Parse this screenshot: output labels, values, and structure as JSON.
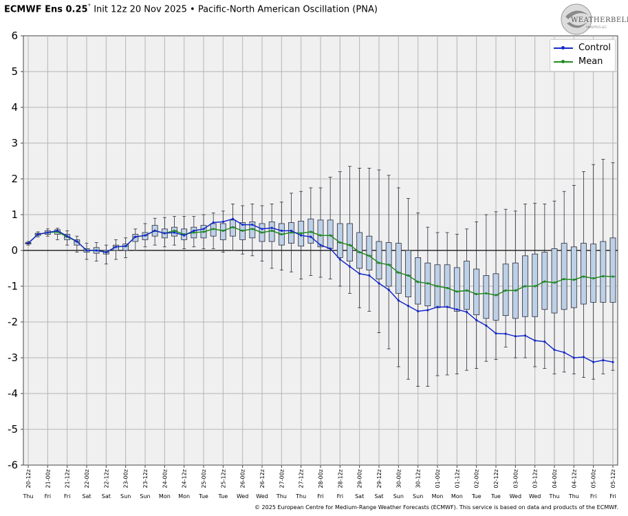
{
  "header": {
    "model": "ECMWF Ens 0.25",
    "model_deg": "°",
    "rest": " Init 12z 20 Nov 2025 • Pacific-North American Oscillation (PNA)"
  },
  "logo": {
    "text": "WEATHERBELL",
    "sub": "ANALYTICS LLC"
  },
  "footer": "© 2025 European Centre for Medium-Range Weather Forecasts (ECMWF). This service is based on data and products of the ECMWF.",
  "colors": {
    "control": "#1428c8",
    "mean": "#1e8c1e",
    "box_fill": "#bdd0e6",
    "box_edge": "#2a2a3a",
    "plot_bg": "#f0f0f0",
    "grid": "#b4b4b4"
  },
  "chart_data": {
    "type": "box",
    "title": "Pacific-North American Oscillation (PNA)",
    "ylim": [
      -6,
      6
    ],
    "yticks": [
      -6,
      -5,
      -4,
      -3,
      -2,
      -1,
      0,
      1,
      2,
      3,
      4,
      5,
      6
    ],
    "grid": true,
    "legend_position": "top-right",
    "legend": [
      "Control",
      "Mean"
    ],
    "x_tick_labels": [
      "20-12z",
      "21-00z",
      "21-12z",
      "22-00z",
      "22-12z",
      "23-00z",
      "23-12z",
      "24-00z",
      "24-12z",
      "25-00z",
      "25-12z",
      "26-00z",
      "26-12z",
      "27-00z",
      "27-12z",
      "28-00z",
      "28-12z",
      "29-00z",
      "29-12z",
      "30-00z",
      "30-12z",
      "01-00z",
      "01-12z",
      "02-00z",
      "02-12z",
      "03-00z",
      "03-12z",
      "04-00z",
      "04-12z",
      "05-00z",
      "05-12z"
    ],
    "x_day_labels": [
      "Thu",
      "Fri",
      "Fri",
      "Sat",
      "Sat",
      "Sun",
      "Sun",
      "Mon",
      "Mon",
      "Tue",
      "Tue",
      "Wed",
      "Wed",
      "Thu",
      "Thu",
      "Fri",
      "Fri",
      "Sat",
      "Sat",
      "Sun",
      "Sun",
      "Mon",
      "Mon",
      "Tue",
      "Tue",
      "Wed",
      "Wed",
      "Thu",
      "Thu",
      "Fri",
      "Fri"
    ],
    "series": [
      {
        "name": "Control",
        "values": [
          0.2,
          0.45,
          0.5,
          0.55,
          0.4,
          0.25,
          0.0,
          0.0,
          -0.05,
          0.1,
          0.12,
          0.38,
          0.42,
          0.55,
          0.48,
          0.5,
          0.42,
          0.55,
          0.6,
          0.78,
          0.8,
          0.88,
          0.72,
          0.72,
          0.6,
          0.63,
          0.55,
          0.55,
          0.42,
          0.38,
          0.15,
          0.05,
          -0.25,
          -0.45,
          -0.65,
          -0.7,
          -0.92,
          -1.1,
          -1.4,
          -1.55,
          -1.7,
          -1.67,
          -1.58,
          -1.58,
          -1.65,
          -1.72,
          -1.95,
          -2.1,
          -2.32,
          -2.33,
          -2.4,
          -2.38,
          -2.52,
          -2.55,
          -2.78,
          -2.85,
          -3.0,
          -2.98,
          -3.12,
          -3.07,
          -3.12
        ]
      },
      {
        "name": "Mean",
        "values": [
          0.2,
          0.45,
          0.5,
          0.52,
          0.38,
          0.25,
          0.0,
          0.0,
          -0.05,
          0.1,
          0.12,
          0.38,
          0.42,
          0.55,
          0.48,
          0.55,
          0.45,
          0.5,
          0.52,
          0.6,
          0.55,
          0.65,
          0.55,
          0.6,
          0.5,
          0.55,
          0.45,
          0.5,
          0.48,
          0.52,
          0.42,
          0.42,
          0.22,
          0.15,
          -0.05,
          -0.15,
          -0.35,
          -0.4,
          -0.62,
          -0.7,
          -0.88,
          -0.92,
          -1.0,
          -1.05,
          -1.15,
          -1.12,
          -1.22,
          -1.2,
          -1.25,
          -1.12,
          -1.12,
          -1.0,
          -1.0,
          -0.87,
          -0.9,
          -0.8,
          -0.82,
          -0.73,
          -0.78,
          -0.72,
          -0.73
        ]
      }
    ],
    "boxes": [
      {
        "q1": 0.18,
        "q3": 0.22,
        "lo": 0.15,
        "hi": 0.25
      },
      {
        "q1": 0.42,
        "q3": 0.48,
        "lo": 0.38,
        "hi": 0.52
      },
      {
        "q1": 0.45,
        "q3": 0.55,
        "lo": 0.4,
        "hi": 0.6
      },
      {
        "q1": 0.45,
        "q3": 0.58,
        "lo": 0.3,
        "hi": 0.62
      },
      {
        "q1": 0.3,
        "q3": 0.45,
        "lo": 0.15,
        "hi": 0.55
      },
      {
        "q1": 0.15,
        "q3": 0.3,
        "lo": -0.05,
        "hi": 0.4
      },
      {
        "q1": -0.05,
        "q3": 0.05,
        "lo": -0.25,
        "hi": 0.2
      },
      {
        "q1": -0.08,
        "q3": 0.08,
        "lo": -0.3,
        "hi": 0.22
      },
      {
        "q1": -0.1,
        "q3": 0.0,
        "lo": -0.38,
        "hi": 0.15
      },
      {
        "q1": 0.0,
        "q3": 0.15,
        "lo": -0.25,
        "hi": 0.3
      },
      {
        "q1": 0.0,
        "q3": 0.18,
        "lo": -0.2,
        "hi": 0.35
      },
      {
        "q1": 0.25,
        "q3": 0.45,
        "lo": 0.0,
        "hi": 0.6
      },
      {
        "q1": 0.3,
        "q3": 0.5,
        "lo": 0.1,
        "hi": 0.75
      },
      {
        "q1": 0.4,
        "q3": 0.7,
        "lo": 0.15,
        "hi": 0.9
      },
      {
        "q1": 0.35,
        "q3": 0.6,
        "lo": 0.1,
        "hi": 0.92
      },
      {
        "q1": 0.4,
        "q3": 0.65,
        "lo": 0.15,
        "hi": 0.95
      },
      {
        "q1": 0.3,
        "q3": 0.6,
        "lo": 0.05,
        "hi": 0.95
      },
      {
        "q1": 0.35,
        "q3": 0.65,
        "lo": 0.1,
        "hi": 0.95
      },
      {
        "q1": 0.35,
        "q3": 0.7,
        "lo": 0.05,
        "hi": 1.0
      },
      {
        "q1": 0.4,
        "q3": 0.75,
        "lo": 0.05,
        "hi": 1.05
      },
      {
        "q1": 0.3,
        "q3": 0.75,
        "lo": -0.05,
        "hi": 1.1
      },
      {
        "q1": 0.4,
        "q3": 0.85,
        "lo": 0.0,
        "hi": 1.3
      },
      {
        "q1": 0.3,
        "q3": 0.78,
        "lo": -0.1,
        "hi": 1.25
      },
      {
        "q1": 0.35,
        "q3": 0.8,
        "lo": -0.15,
        "hi": 1.3
      },
      {
        "q1": 0.25,
        "q3": 0.75,
        "lo": -0.3,
        "hi": 1.25
      },
      {
        "q1": 0.25,
        "q3": 0.8,
        "lo": -0.5,
        "hi": 1.3
      },
      {
        "q1": 0.15,
        "q3": 0.75,
        "lo": -0.55,
        "hi": 1.35
      },
      {
        "q1": 0.2,
        "q3": 0.78,
        "lo": -0.6,
        "hi": 1.6
      },
      {
        "q1": 0.12,
        "q3": 0.82,
        "lo": -0.8,
        "hi": 1.65
      },
      {
        "q1": 0.2,
        "q3": 0.88,
        "lo": -0.7,
        "hi": 1.75
      },
      {
        "q1": 0.1,
        "q3": 0.85,
        "lo": -0.75,
        "hi": 1.75
      },
      {
        "q1": 0.05,
        "q3": 0.85,
        "lo": -0.8,
        "hi": 2.05
      },
      {
        "q1": -0.2,
        "q3": 0.75,
        "lo": -1.0,
        "hi": 2.2
      },
      {
        "q1": -0.3,
        "q3": 0.75,
        "lo": -1.2,
        "hi": 2.35
      },
      {
        "q1": -0.5,
        "q3": 0.5,
        "lo": -1.6,
        "hi": 2.3
      },
      {
        "q1": -0.55,
        "q3": 0.4,
        "lo": -1.7,
        "hi": 2.3
      },
      {
        "q1": -0.8,
        "q3": 0.25,
        "lo": -2.3,
        "hi": 2.25
      },
      {
        "q1": -1.0,
        "q3": 0.22,
        "lo": -2.75,
        "hi": 2.1
      },
      {
        "q1": -1.2,
        "q3": 0.2,
        "lo": -3.25,
        "hi": 1.75
      },
      {
        "q1": -1.3,
        "q3": 0.0,
        "lo": -3.6,
        "hi": 1.45
      },
      {
        "q1": -1.5,
        "q3": -0.2,
        "lo": -3.8,
        "hi": 1.05
      },
      {
        "q1": -1.55,
        "q3": -0.35,
        "lo": -3.8,
        "hi": 0.65
      },
      {
        "q1": -1.6,
        "q3": -0.4,
        "lo": -3.5,
        "hi": 0.5
      },
      {
        "q1": -1.58,
        "q3": -0.4,
        "lo": -3.48,
        "hi": 0.5
      },
      {
        "q1": -1.7,
        "q3": -0.48,
        "lo": -3.45,
        "hi": 0.45
      },
      {
        "q1": -1.65,
        "q3": -0.3,
        "lo": -3.35,
        "hi": 0.6
      },
      {
        "q1": -1.8,
        "q3": -0.52,
        "lo": -3.3,
        "hi": 0.8
      },
      {
        "q1": -1.9,
        "q3": -0.7,
        "lo": -3.1,
        "hi": 1.0
      },
      {
        "q1": -1.95,
        "q3": -0.65,
        "lo": -3.05,
        "hi": 1.08
      },
      {
        "q1": -1.82,
        "q3": -0.38,
        "lo": -2.7,
        "hi": 1.15
      },
      {
        "q1": -1.9,
        "q3": -0.35,
        "lo": -3.0,
        "hi": 1.1
      },
      {
        "q1": -1.85,
        "q3": -0.15,
        "lo": -3.0,
        "hi": 1.3
      },
      {
        "q1": -1.85,
        "q3": -0.1,
        "lo": -3.25,
        "hi": 1.32
      },
      {
        "q1": -1.65,
        "q3": -0.05,
        "lo": -3.3,
        "hi": 1.3
      },
      {
        "q1": -1.75,
        "q3": 0.05,
        "lo": -3.45,
        "hi": 1.38
      },
      {
        "q1": -1.65,
        "q3": 0.2,
        "lo": -3.4,
        "hi": 1.65
      },
      {
        "q1": -1.6,
        "q3": 0.1,
        "lo": -3.45,
        "hi": 1.82
      },
      {
        "q1": -1.5,
        "q3": 0.2,
        "lo": -3.55,
        "hi": 2.2
      },
      {
        "q1": -1.45,
        "q3": 0.18,
        "lo": -3.6,
        "hi": 2.4
      },
      {
        "q1": -1.45,
        "q3": 0.25,
        "lo": -3.45,
        "hi": 2.55
      },
      {
        "q1": -1.45,
        "q3": 0.35,
        "lo": -3.35,
        "hi": 2.45
      }
    ]
  }
}
